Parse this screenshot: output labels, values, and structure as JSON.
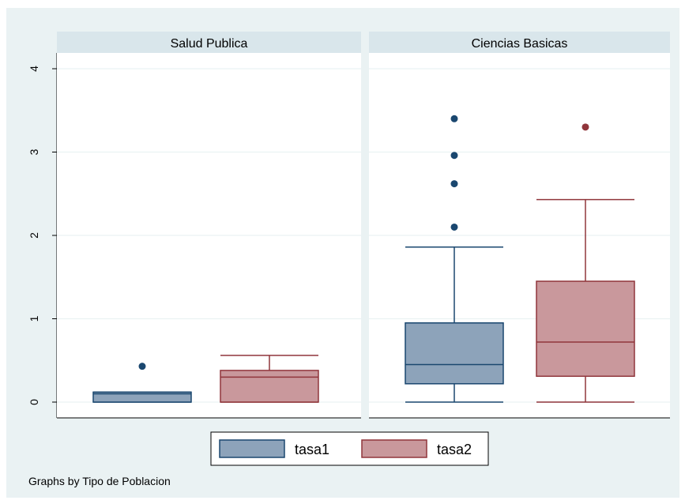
{
  "chart_data": {
    "type": "box",
    "ylim": [
      0,
      4
    ],
    "yticks": [
      "0",
      "1",
      "2",
      "3",
      "4"
    ],
    "grid": true,
    "legend_position": "bottom",
    "series": [
      {
        "name": "tasa1",
        "fill": "#8DA3BA",
        "stroke": "#1A476F"
      },
      {
        "name": "tasa2",
        "fill": "#C9989C",
        "stroke": "#90353B"
      }
    ],
    "panels": [
      {
        "label": "Salud Publica",
        "boxes": [
          {
            "series": "tasa1",
            "whisker_low": 0,
            "q1": 0,
            "median": 0.1,
            "q3": 0.12,
            "whisker_high": 0.12,
            "outliers": [
              0.43
            ]
          },
          {
            "series": "tasa2",
            "whisker_low": 0,
            "q1": 0,
            "median": 0.3,
            "q3": 0.38,
            "whisker_high": 0.56,
            "outliers": []
          }
        ]
      },
      {
        "label": "Ciencias Basicas",
        "boxes": [
          {
            "series": "tasa1",
            "whisker_low": 0,
            "q1": 0.22,
            "median": 0.45,
            "q3": 0.95,
            "whisker_high": 1.86,
            "outliers": [
              2.1,
              2.62,
              2.96,
              3.4
            ]
          },
          {
            "series": "tasa2",
            "whisker_low": 0,
            "q1": 0.31,
            "median": 0.72,
            "q3": 1.45,
            "whisker_high": 2.43,
            "outliers": [
              3.3
            ]
          }
        ]
      }
    ],
    "note": "Graphs by Tipo de Poblacion"
  },
  "colors": {
    "background": "#EAF2F3",
    "strip": "#D9E6EB",
    "plot_area": "#FFFFFF",
    "grid": "#EAF2F3"
  }
}
